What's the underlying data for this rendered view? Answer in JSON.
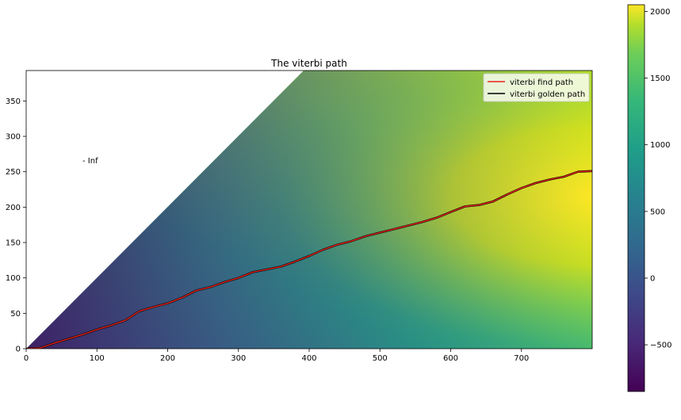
{
  "chart_data": {
    "type": "heatmap",
    "title": "The viterbi path",
    "annotation": "- Inf",
    "xlim": [
      0,
      800
    ],
    "ylim": [
      0,
      393
    ],
    "xticks": [
      0,
      100,
      200,
      300,
      400,
      500,
      600,
      700
    ],
    "yticks": [
      0,
      50,
      100,
      150,
      200,
      250,
      300,
      350
    ],
    "colorbar": {
      "range": [
        -850,
        2050
      ],
      "ticks": [
        -500,
        0,
        500,
        1000,
        1500,
        2000
      ],
      "tick_labels": [
        "−500",
        "0",
        "500",
        "1000",
        "1500",
        "2000"
      ],
      "colormap": "viridis"
    },
    "legend": {
      "position": "top-right",
      "entries": [
        {
          "label": "viterbi find path",
          "color": "#e8231c"
        },
        {
          "label": "viterbi golden path",
          "color": "#000000"
        }
      ]
    },
    "series": [
      {
        "name": "viterbi find path",
        "color": "#e8231c",
        "points": [
          [
            0,
            0
          ],
          [
            20,
            1
          ],
          [
            40,
            8
          ],
          [
            60,
            14
          ],
          [
            80,
            20
          ],
          [
            100,
            27
          ],
          [
            120,
            33
          ],
          [
            140,
            40
          ],
          [
            160,
            53
          ],
          [
            180,
            59
          ],
          [
            200,
            64
          ],
          [
            220,
            72
          ],
          [
            240,
            82
          ],
          [
            260,
            87
          ],
          [
            280,
            94
          ],
          [
            300,
            100
          ],
          [
            320,
            108
          ],
          [
            340,
            112
          ],
          [
            360,
            116
          ],
          [
            380,
            123
          ],
          [
            400,
            131
          ],
          [
            420,
            140
          ],
          [
            440,
            147
          ],
          [
            460,
            152
          ],
          [
            480,
            159
          ],
          [
            500,
            164
          ],
          [
            520,
            169
          ],
          [
            540,
            174
          ],
          [
            560,
            179
          ],
          [
            580,
            185
          ],
          [
            600,
            193
          ],
          [
            620,
            201
          ],
          [
            640,
            203
          ],
          [
            660,
            208
          ],
          [
            680,
            218
          ],
          [
            700,
            227
          ],
          [
            720,
            234
          ],
          [
            740,
            239
          ],
          [
            760,
            243
          ],
          [
            780,
            250
          ],
          [
            800,
            251
          ]
        ]
      },
      {
        "name": "viterbi golden path",
        "color": "#000000",
        "points": [
          [
            0,
            0
          ],
          [
            20,
            1
          ],
          [
            40,
            8
          ],
          [
            60,
            14
          ],
          [
            80,
            20
          ],
          [
            100,
            27
          ],
          [
            120,
            33
          ],
          [
            140,
            40
          ],
          [
            160,
            53
          ],
          [
            180,
            59
          ],
          [
            200,
            64
          ],
          [
            220,
            72
          ],
          [
            240,
            82
          ],
          [
            260,
            87
          ],
          [
            280,
            94
          ],
          [
            300,
            100
          ],
          [
            320,
            108
          ],
          [
            340,
            112
          ],
          [
            360,
            116
          ],
          [
            380,
            123
          ],
          [
            400,
            131
          ],
          [
            420,
            140
          ],
          [
            440,
            147
          ],
          [
            460,
            152
          ],
          [
            480,
            159
          ],
          [
            500,
            164
          ],
          [
            520,
            169
          ],
          [
            540,
            174
          ],
          [
            560,
            179
          ],
          [
            580,
            185
          ],
          [
            600,
            193
          ],
          [
            620,
            201
          ],
          [
            640,
            203
          ],
          [
            660,
            208
          ],
          [
            680,
            218
          ],
          [
            700,
            227
          ],
          [
            720,
            234
          ],
          [
            740,
            239
          ],
          [
            760,
            243
          ],
          [
            780,
            250
          ],
          [
            800,
            251
          ]
        ]
      }
    ]
  }
}
